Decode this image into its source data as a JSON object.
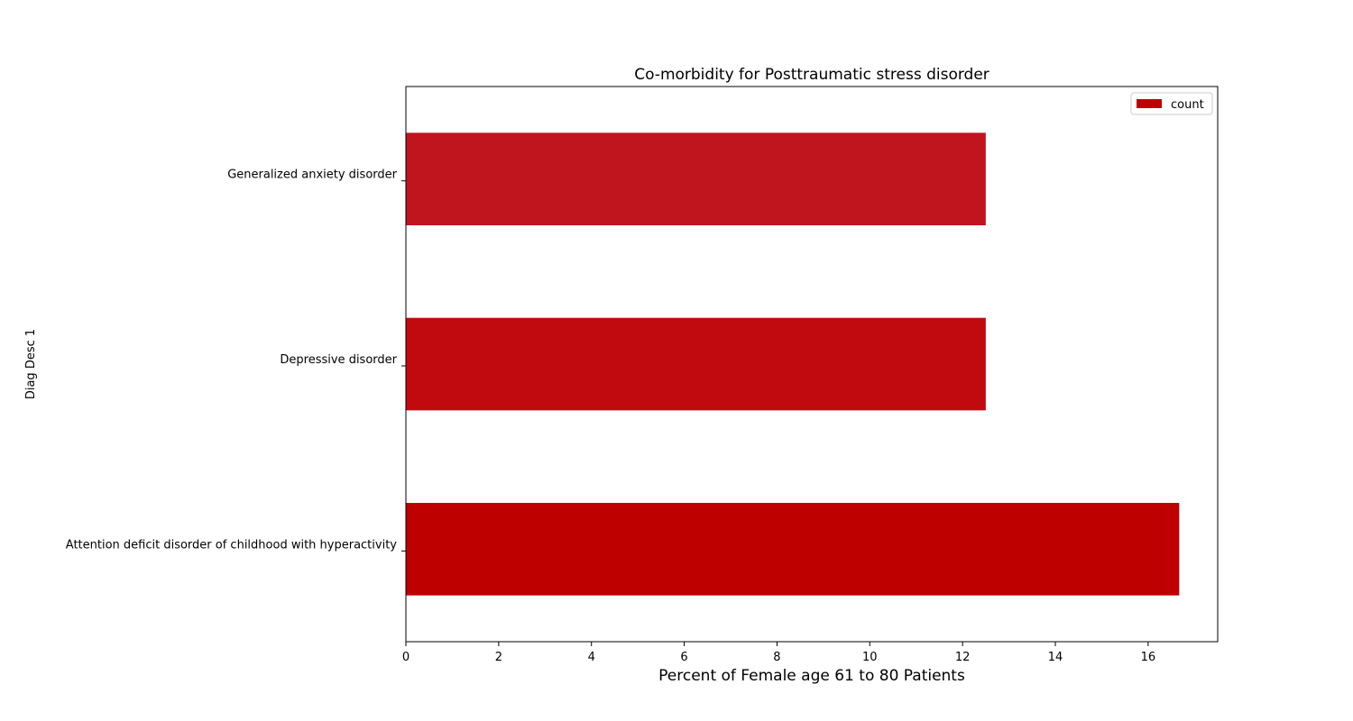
{
  "chart_data": {
    "type": "bar",
    "orientation": "horizontal",
    "title": "Co-morbidity for Posttraumatic stress disorder",
    "xlabel": "Percent of Female age 61 to 80 Patients",
    "ylabel": "Diag Desc 1",
    "categories": [
      "Attention deficit disorder of childhood with hyperactivity",
      "Depressive disorder",
      "Generalized anxiety disorder"
    ],
    "series": [
      {
        "name": "count",
        "values": [
          16.67,
          12.5,
          12.5
        ],
        "colors": [
          "#bf0000",
          "#c00a10",
          "#c0141e"
        ]
      }
    ],
    "xlim": [
      0,
      17.5
    ],
    "xticks": [
      0,
      2,
      4,
      6,
      8,
      10,
      12,
      14,
      16
    ],
    "grid": false,
    "legend": "top-right",
    "legend_color": "#bf0000"
  }
}
